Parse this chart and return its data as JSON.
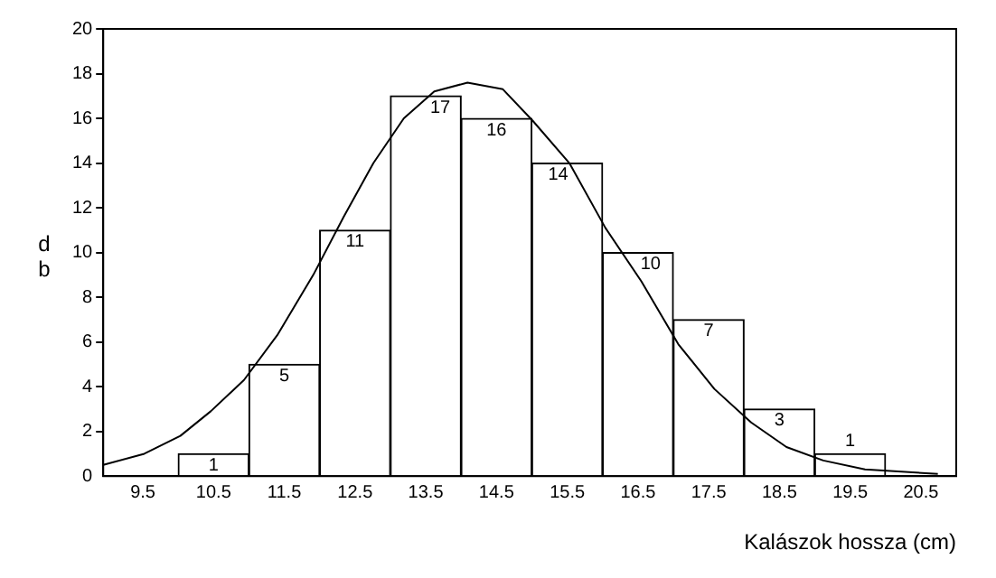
{
  "chart_data": {
    "type": "histogram",
    "xlabel": "Kalászok hossza (cm)",
    "ylabel": "db",
    "bins": [
      10,
      11,
      12,
      13,
      14,
      15,
      16,
      17,
      18,
      19,
      20
    ],
    "values": [
      1,
      5,
      11,
      17,
      16,
      14,
      10,
      7,
      3,
      1
    ],
    "color": "#ffffff",
    "value_labels": [
      "1",
      "5",
      "11",
      "17",
      "16",
      "14",
      "10",
      "7",
      "3",
      "1"
    ],
    "series": [
      {
        "type": "line",
        "color": "#000000",
        "x": [
          8.94,
          9.52,
          10.03,
          10.46,
          10.93,
          11.4,
          11.91,
          12.34,
          12.76,
          13.19,
          13.62,
          14.09,
          14.59,
          15.01,
          15.53,
          16.04,
          16.55,
          17.07,
          17.58,
          18.1,
          18.6,
          19.12,
          19.71,
          20.74
        ],
        "values": [
          0.5,
          1.0,
          1.8,
          2.9,
          4.3,
          6.3,
          9.0,
          11.6,
          14.0,
          16.0,
          17.2,
          17.6,
          17.3,
          15.9,
          14.0,
          11.1,
          8.7,
          5.9,
          3.9,
          2.4,
          1.3,
          0.7,
          0.3,
          0.1
        ]
      }
    ],
    "xlim": [
      8.94,
      21
    ],
    "xticks": [
      9.5,
      10.5,
      11.5,
      12.5,
      13.5,
      14.5,
      15.5,
      16.5,
      17.5,
      18.5,
      19.5,
      20.5
    ],
    "ylim": [
      0,
      20
    ],
    "yticks": [
      0,
      2,
      4,
      6,
      8,
      10,
      12,
      14,
      16,
      18,
      20
    ],
    "grid": false,
    "legend": false,
    "marker": "none"
  }
}
